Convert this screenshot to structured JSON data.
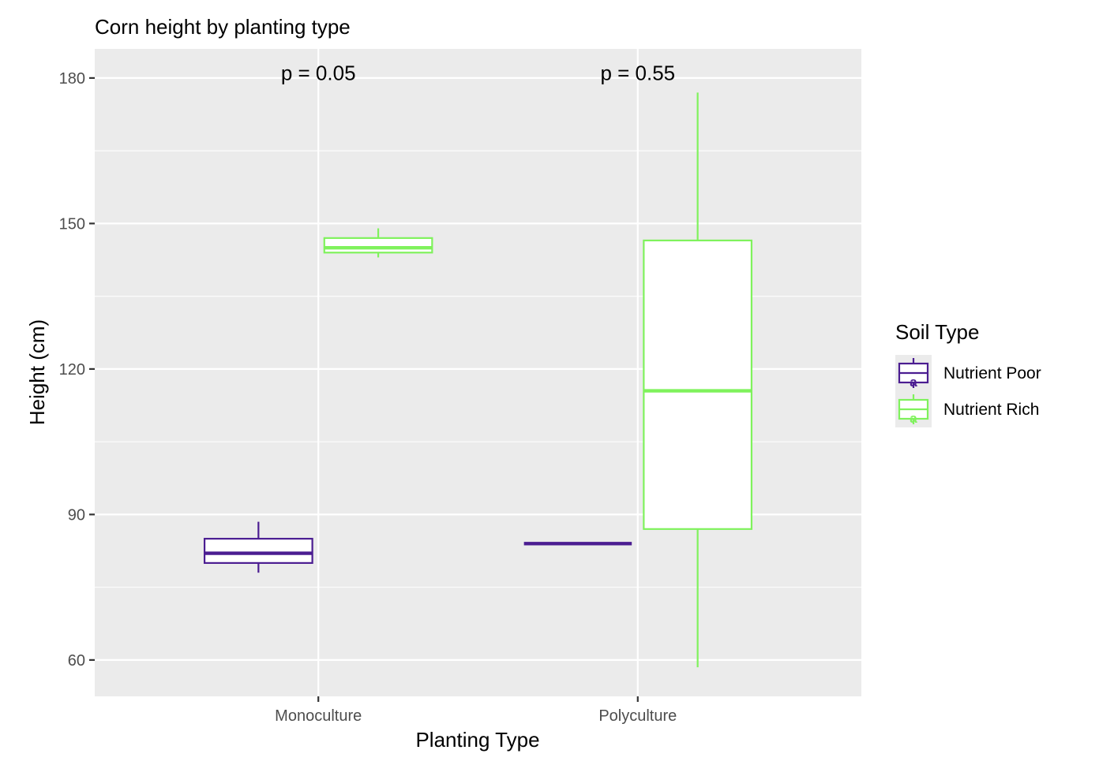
{
  "chart_data": {
    "type": "boxplot",
    "title": "Corn height by planting type",
    "xlabel": "Planting Type",
    "ylabel": "Height (cm)",
    "ylim": [
      52.5,
      186
    ],
    "yticks": [
      60,
      90,
      120,
      150,
      180
    ],
    "grid": true,
    "categories": [
      "Monoculture",
      "Polyculture"
    ],
    "legend": {
      "title": "Soil Type",
      "placement": "right",
      "key_glyph": "a"
    },
    "series": [
      {
        "name": "Nutrient Poor",
        "color": "#4B1D91",
        "boxes": [
          {
            "category": "Monoculture",
            "min": 78,
            "q1": 80,
            "median": 82,
            "q3": 85,
            "max": 88.5
          },
          {
            "category": "Polyculture",
            "min": 84,
            "q1": 84,
            "median": 84,
            "q3": 84,
            "max": 84
          }
        ]
      },
      {
        "name": "Nutrient Rich",
        "color": "#7FF25C",
        "boxes": [
          {
            "category": "Monoculture",
            "min": 143,
            "q1": 144,
            "median": 145,
            "q3": 147,
            "max": 149
          },
          {
            "category": "Polyculture",
            "min": 58.5,
            "q1": 87,
            "median": 115.5,
            "q3": 146.5,
            "max": 177
          }
        ]
      }
    ],
    "annotations": [
      {
        "category": "Monoculture",
        "text": "p = 0.05",
        "y": 181
      },
      {
        "category": "Polyculture",
        "text": "p = 0.55",
        "y": 181
      }
    ]
  }
}
